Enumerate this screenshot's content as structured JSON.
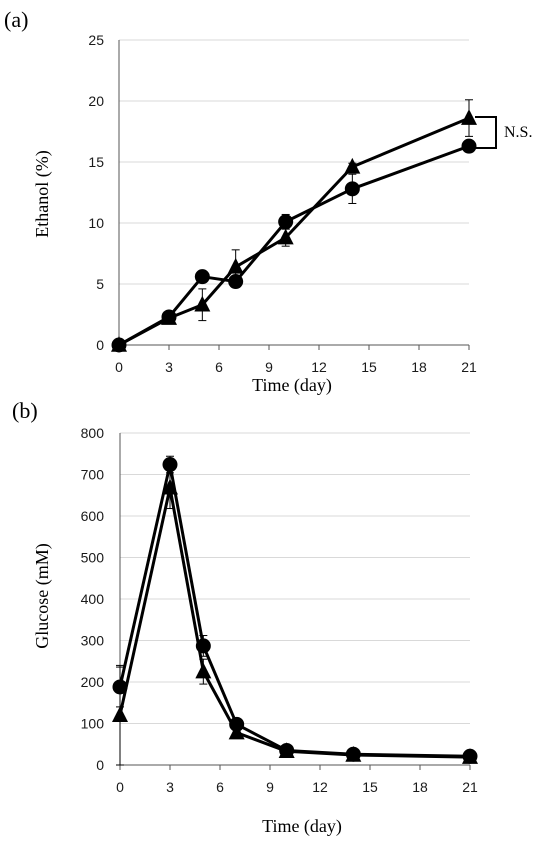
{
  "chart_data": [
    {
      "panel_label": "(a)",
      "type": "line",
      "xlabel": "Time (day)",
      "ylabel": "Ethanol (%)",
      "xlim": [
        0,
        21
      ],
      "ylim": [
        0,
        25
      ],
      "xticks": [
        0,
        3,
        6,
        9,
        12,
        15,
        18,
        21
      ],
      "yticks": [
        0,
        5,
        10,
        15,
        20,
        25
      ],
      "grid": "horizontal",
      "annotation": "N.S.",
      "series": [
        {
          "marker": "circle",
          "x": [
            0,
            3,
            5,
            7,
            10,
            14,
            21
          ],
          "y": [
            0,
            2.3,
            5.6,
            5.2,
            10.1,
            12.8,
            16.3
          ],
          "err": [
            0,
            0.2,
            0.3,
            0.3,
            0.6,
            1.2,
            0.2
          ]
        },
        {
          "marker": "triangle",
          "x": [
            0,
            3,
            5,
            7,
            10,
            14,
            21
          ],
          "y": [
            0,
            2.2,
            3.3,
            6.4,
            8.8,
            14.6,
            18.6
          ],
          "err": [
            0,
            0.3,
            1.3,
            1.4,
            0.7,
            0.3,
            1.5
          ]
        }
      ]
    },
    {
      "panel_label": "(b)",
      "type": "line",
      "xlabel": "Time (day)",
      "ylabel": "Glucose (mM)",
      "xlim": [
        0,
        21
      ],
      "ylim": [
        0,
        800
      ],
      "xticks": [
        0,
        3,
        6,
        9,
        12,
        15,
        18,
        21
      ],
      "yticks": [
        0,
        100,
        200,
        300,
        400,
        500,
        600,
        700,
        800
      ],
      "grid": "horizontal",
      "series": [
        {
          "marker": "circle",
          "x": [
            0,
            3,
            5,
            7,
            10,
            14,
            21
          ],
          "y": [
            188,
            724,
            287,
            98,
            35,
            26,
            21
          ],
          "err": [
            48,
            20,
            25,
            8,
            5,
            3,
            2
          ]
        },
        {
          "marker": "triangle",
          "x": [
            0,
            3,
            5,
            7,
            10,
            14,
            21
          ],
          "y": [
            120,
            668,
            225,
            78,
            33,
            24,
            19
          ],
          "err": [
            120,
            50,
            30,
            6,
            4,
            3,
            2
          ]
        }
      ]
    }
  ]
}
